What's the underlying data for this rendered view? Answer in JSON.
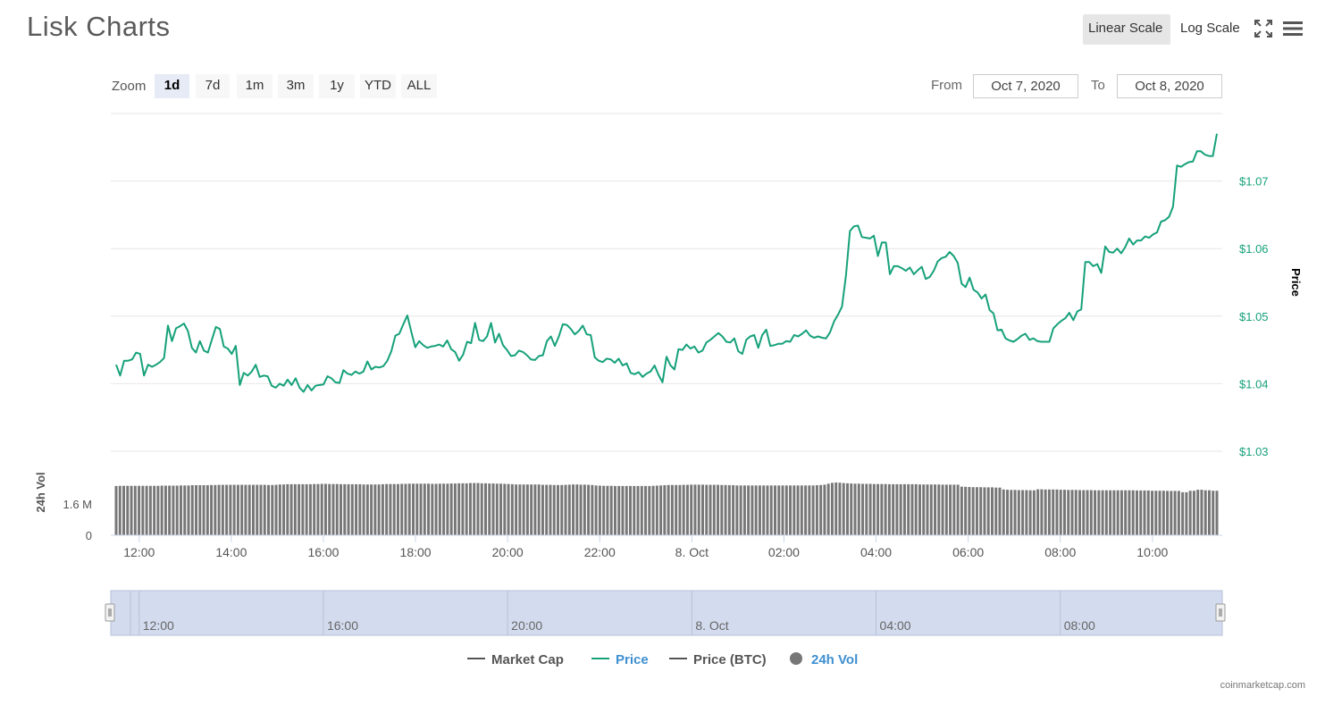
{
  "page": {
    "title": "Lisk Charts",
    "credit": "coinmarketcap.com"
  },
  "toolbar": {
    "linear_label": "Linear Scale",
    "log_label": "Log Scale",
    "active_scale": "linear",
    "fullscreen_icon": "fullscreen-icon",
    "menu_icon": "hamburger-menu-icon"
  },
  "zoom": {
    "label": "Zoom",
    "buttons": [
      "1d",
      "7d",
      "1m",
      "3m",
      "1y",
      "YTD",
      "ALL"
    ],
    "active": "1d"
  },
  "range": {
    "from_label": "From",
    "from_value": "Oct 7, 2020",
    "to_label": "To",
    "to_value": "Oct 8, 2020"
  },
  "colors": {
    "price": "#16a17a",
    "volume": "#777777",
    "navigator_fill": "#d3dbee",
    "link": "#3e8fd0"
  },
  "chart_data": {
    "type": "line",
    "ylabel": "Price",
    "ylim": [
      1.03,
      1.08
    ],
    "y_ticks": [
      "$1.03",
      "$1.04",
      "$1.05",
      "$1.06",
      "$1.07"
    ],
    "x_ticks": [
      "12:00",
      "14:00",
      "16:00",
      "18:00",
      "20:00",
      "22:00",
      "8. Oct",
      "02:00",
      "04:00",
      "06:00",
      "08:00",
      "10:00"
    ],
    "x_hours_start": 11.5,
    "x_hours_end": 35.4,
    "series": [
      {
        "name": "Price",
        "values": [
          1.0428,
          1.0412,
          1.0434,
          1.0434,
          1.0436,
          1.0446,
          1.0444,
          1.0412,
          1.0428,
          1.0425,
          1.0428,
          1.0432,
          1.0438,
          1.0486,
          1.0463,
          1.0482,
          1.0485,
          1.0489,
          1.0478,
          1.0453,
          1.0446,
          1.0463,
          1.0449,
          1.0446,
          1.0465,
          1.0484,
          1.0481,
          1.0455,
          1.0452,
          1.0444,
          1.0456,
          1.0398,
          1.0416,
          1.0412,
          1.0418,
          1.0428,
          1.041,
          1.0412,
          1.0411,
          1.0397,
          1.0394,
          1.04,
          1.0397,
          1.0406,
          1.0398,
          1.0408,
          1.0394,
          1.0388,
          1.0398,
          1.039,
          1.0397,
          1.0398,
          1.0399,
          1.0411,
          1.0408,
          1.0402,
          1.0401,
          1.042,
          1.0415,
          1.0413,
          1.0418,
          1.0415,
          1.0418,
          1.0433,
          1.0421,
          1.0425,
          1.0424,
          1.0426,
          1.0434,
          1.0448,
          1.0471,
          1.0474,
          1.0488,
          1.0501,
          1.0477,
          1.0454,
          1.0463,
          1.0457,
          1.0453,
          1.0455,
          1.0456,
          1.0458,
          1.0455,
          1.0464,
          1.0451,
          1.0447,
          1.0434,
          1.0443,
          1.0462,
          1.046,
          1.049,
          1.0465,
          1.0463,
          1.047,
          1.049,
          1.0461,
          1.0474,
          1.0457,
          1.045,
          1.0441,
          1.0442,
          1.0449,
          1.0447,
          1.0442,
          1.0436,
          1.0435,
          1.0441,
          1.0442,
          1.0463,
          1.047,
          1.0456,
          1.047,
          1.0488,
          1.0487,
          1.0481,
          1.0473,
          1.0478,
          1.0486,
          1.0473,
          1.0472,
          1.0439,
          1.0434,
          1.0432,
          1.0437,
          1.0436,
          1.0431,
          1.0437,
          1.0427,
          1.043,
          1.0416,
          1.0414,
          1.0417,
          1.041,
          1.0415,
          1.0418,
          1.0427,
          1.0413,
          1.0402,
          1.044,
          1.0427,
          1.0421,
          1.0451,
          1.045,
          1.0458,
          1.0452,
          1.0455,
          1.0446,
          1.0449,
          1.0461,
          1.0465,
          1.047,
          1.0475,
          1.047,
          1.0462,
          1.0461,
          1.0467,
          1.0448,
          1.0444,
          1.0465,
          1.047,
          1.0472,
          1.0453,
          1.0472,
          1.048,
          1.0456,
          1.0457,
          1.0459,
          1.0459,
          1.0463,
          1.0462,
          1.0472,
          1.047,
          1.0474,
          1.0479,
          1.0471,
          1.0468,
          1.047,
          1.0468,
          1.0467,
          1.0476,
          1.0492,
          1.0502,
          1.0514,
          1.0561,
          1.0626,
          1.0633,
          1.0634,
          1.0617,
          1.0616,
          1.0615,
          1.0619,
          1.0589,
          1.0609,
          1.0609,
          1.0562,
          1.0574,
          1.0574,
          1.0571,
          1.0567,
          1.0572,
          1.0562,
          1.0568,
          1.0573,
          1.0555,
          1.0558,
          1.0567,
          1.0581,
          1.0586,
          1.0588,
          1.0595,
          1.0589,
          1.0579,
          1.0548,
          1.0543,
          1.0557,
          1.0539,
          1.0535,
          1.0526,
          1.0532,
          1.0509,
          1.0504,
          1.0479,
          1.048,
          1.0467,
          1.0464,
          1.0462,
          1.0466,
          1.0471,
          1.0474,
          1.0465,
          1.0467,
          1.0463,
          1.0462,
          1.0462,
          1.0462,
          1.0482,
          1.0488,
          1.0493,
          1.0497,
          1.0505,
          1.0494,
          1.0507,
          1.051,
          1.058,
          1.058,
          1.0574,
          1.0577,
          1.0564,
          1.0603,
          1.0595,
          1.0594,
          1.06,
          1.0593,
          1.0602,
          1.0615,
          1.0606,
          1.0612,
          1.0612,
          1.0618,
          1.0616,
          1.0621,
          1.0624,
          1.064,
          1.0642,
          1.0647,
          1.0662,
          1.0723,
          1.0721,
          1.0725,
          1.0728,
          1.0729,
          1.0744,
          1.0744,
          1.0739,
          1.0737,
          1.0737,
          1.077
        ]
      }
    ],
    "volume": {
      "name": "24h Vol",
      "unit_ticks": [
        "0",
        "1.6 M"
      ],
      "ylim": [
        0,
        4.3
      ],
      "values": [
        2.52,
        2.53,
        2.53,
        2.53,
        2.53,
        2.53,
        2.53,
        2.53,
        2.53,
        2.53,
        2.53,
        2.53,
        2.54,
        2.54,
        2.54,
        2.54,
        2.54,
        2.55,
        2.55,
        2.55,
        2.56,
        2.56,
        2.56,
        2.56,
        2.56,
        2.57,
        2.57,
        2.58,
        2.58,
        2.58,
        2.58,
        2.58,
        2.58,
        2.58,
        2.58,
        2.58,
        2.58,
        2.58,
        2.58,
        2.58,
        2.57,
        2.57,
        2.58,
        2.6,
        2.6,
        2.61,
        2.61,
        2.61,
        2.61,
        2.61,
        2.61,
        2.61,
        2.62,
        2.62,
        2.63,
        2.63,
        2.62,
        2.62,
        2.62,
        2.61,
        2.61,
        2.61,
        2.61,
        2.61,
        2.61,
        2.6,
        2.6,
        2.6,
        2.6,
        2.6,
        2.61,
        2.62,
        2.62,
        2.62,
        2.62,
        2.63,
        2.63,
        2.64,
        2.64,
        2.64,
        2.64,
        2.64,
        2.64,
        2.63,
        2.63,
        2.64,
        2.64,
        2.64,
        2.65,
        2.65,
        2.66,
        2.66,
        2.66,
        2.67,
        2.67,
        2.67,
        2.66,
        2.66,
        2.65,
        2.65,
        2.64,
        2.64,
        2.63,
        2.62,
        2.61,
        2.6,
        2.6,
        2.6,
        2.6,
        2.6,
        2.6,
        2.6,
        2.58,
        2.58,
        2.58,
        2.57,
        2.57,
        2.57,
        2.58,
        2.59,
        2.6,
        2.6,
        2.59,
        2.59,
        2.58,
        2.57,
        2.55,
        2.54,
        2.53,
        2.53,
        2.53,
        2.52,
        2.52,
        2.52,
        2.52,
        2.52,
        2.52,
        2.52,
        2.52,
        2.52,
        2.52,
        2.53,
        2.54,
        2.55,
        2.56,
        2.57,
        2.57,
        2.57,
        2.57,
        2.58,
        2.58,
        2.59,
        2.59,
        2.59,
        2.59,
        2.58,
        2.58,
        2.58,
        2.58,
        2.57,
        2.57,
        2.56,
        2.56,
        2.55,
        2.55,
        2.55,
        2.55,
        2.55,
        2.55,
        2.55,
        2.55,
        2.55,
        2.55,
        2.55,
        2.55,
        2.55,
        2.55,
        2.55,
        2.55,
        2.55,
        2.55,
        2.55,
        2.55,
        2.55,
        2.56,
        2.57,
        2.59,
        2.64,
        2.68,
        2.7,
        2.69,
        2.67,
        2.66,
        2.65,
        2.64,
        2.64,
        2.63,
        2.63,
        2.63,
        2.62,
        2.62,
        2.62,
        2.62,
        2.61,
        2.61,
        2.61,
        2.61,
        2.61,
        2.61,
        2.61,
        2.61,
        2.6,
        2.6,
        2.6,
        2.6,
        2.6,
        2.6,
        2.59,
        2.59,
        2.59,
        2.59,
        2.59,
        2.49,
        2.48,
        2.47,
        2.46,
        2.46,
        2.46,
        2.45,
        2.45,
        2.45,
        2.44,
        2.44,
        2.34,
        2.33,
        2.32,
        2.32,
        2.31,
        2.31,
        2.31,
        2.3,
        2.3,
        2.35,
        2.35,
        2.34,
        2.34,
        2.34,
        2.34,
        2.33,
        2.33,
        2.32,
        2.32,
        2.32,
        2.31,
        2.31,
        2.31,
        2.31,
        2.3,
        2.3,
        2.3,
        2.3,
        2.3,
        2.3,
        2.3,
        2.3,
        2.3,
        2.3,
        2.3,
        2.29,
        2.29,
        2.29,
        2.29,
        2.28,
        2.28,
        2.28,
        2.28,
        2.27,
        2.27,
        2.27,
        2.27,
        2.2,
        2.2,
        2.28,
        2.28,
        2.33,
        2.33,
        2.3,
        2.3,
        2.28,
        2.28
      ]
    },
    "navigator": {
      "x_ticks": [
        "12:00",
        "16:00",
        "20:00",
        "8. Oct",
        "04:00",
        "08:00"
      ],
      "x_hours": [
        12,
        16,
        20,
        24,
        28,
        32
      ]
    },
    "grid": true
  },
  "legend": {
    "items": [
      {
        "label": "Market Cap",
        "color": "#555555",
        "style": "line",
        "highlight": false
      },
      {
        "label": "Price",
        "color": "#16a17a",
        "style": "line",
        "highlight": true
      },
      {
        "label": "Price (BTC)",
        "color": "#555555",
        "style": "line",
        "highlight": false
      },
      {
        "label": "24h Vol",
        "color": "#777777",
        "style": "dot",
        "highlight": true
      }
    ]
  }
}
